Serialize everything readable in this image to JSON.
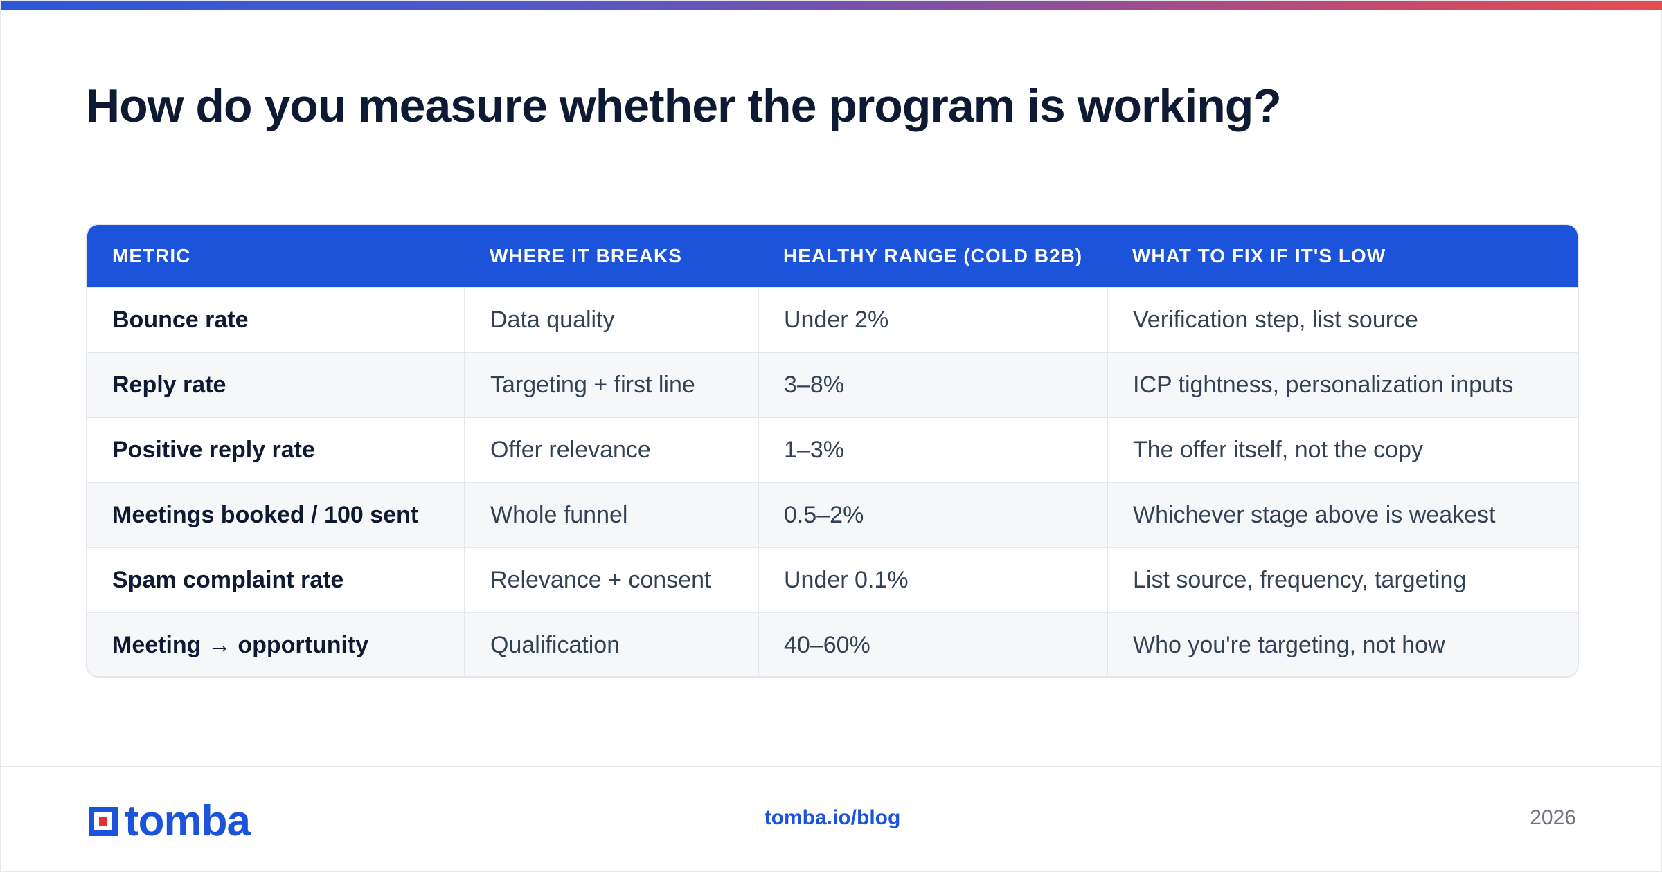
{
  "header": {
    "title": "How do you measure whether the program is working?"
  },
  "colors": {
    "accent": "#1b54db",
    "top_bar_gradient": [
      "#2a57d8",
      "#8c4f9c",
      "#e54c50"
    ],
    "logo_square": "#e5312f"
  },
  "table": {
    "columns": [
      "METRIC",
      "WHERE IT BREAKS",
      "HEALTHY RANGE (COLD B2B)",
      "WHAT TO FIX IF IT'S LOW"
    ],
    "rows": [
      [
        "Bounce rate",
        "Data quality",
        "Under 2%",
        "Verification step, list source"
      ],
      [
        "Reply rate",
        "Targeting + first line",
        "3–8%",
        "ICP tightness, personalization inputs"
      ],
      [
        "Positive reply rate",
        "Offer relevance",
        "1–3%",
        "The offer itself, not the copy"
      ],
      [
        "Meetings booked / 100 sent",
        "Whole funnel",
        "0.5–2%",
        "Whichever stage above is weakest"
      ],
      [
        "Spam complaint rate",
        "Relevance + consent",
        "Under 0.1%",
        "List source, frequency, targeting"
      ],
      [
        "Meeting → opportunity",
        "Qualification",
        "40–60%",
        "Who you're targeting, not how"
      ]
    ]
  },
  "footer": {
    "logo_text": "tomba",
    "link": "tomba.io/blog",
    "year": "2026"
  }
}
